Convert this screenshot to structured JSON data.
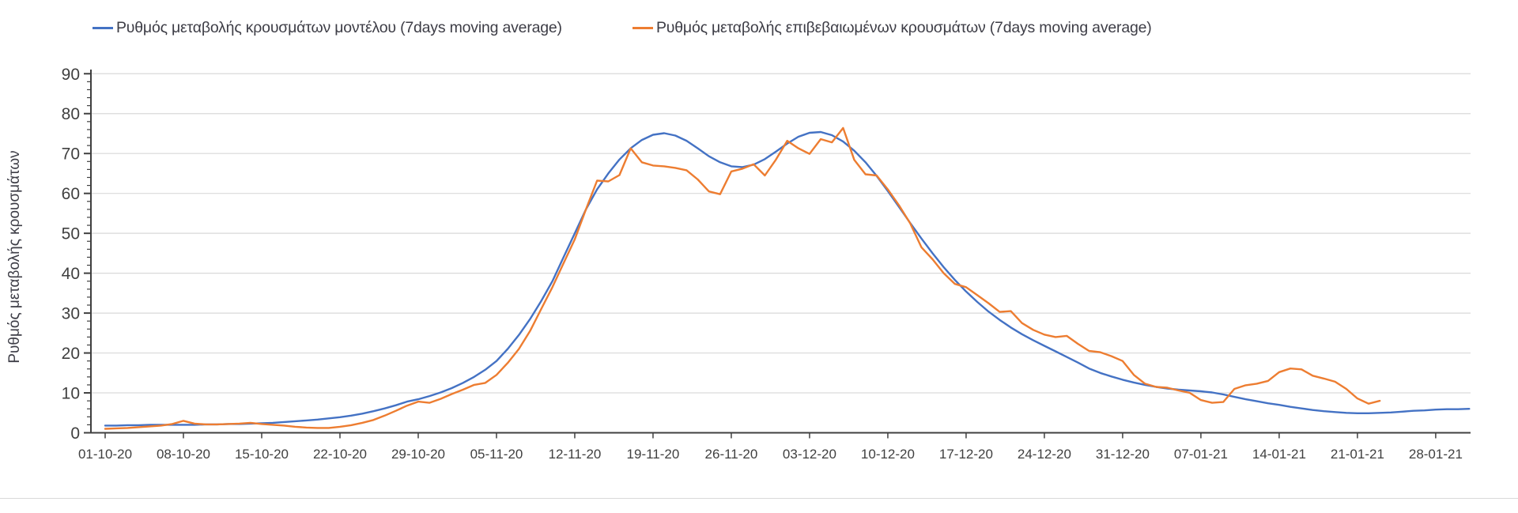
{
  "chart_data": {
    "type": "line",
    "title": "",
    "xlabel": "",
    "ylabel": "Ρυθμός μεταβολής κρουσμάτων",
    "ylim": [
      0,
      90
    ],
    "y_ticks": [
      0,
      10,
      20,
      30,
      40,
      50,
      60,
      70,
      80,
      90
    ],
    "grid": "horizontal",
    "legend_position": "top",
    "x_tick_labels": [
      "01-10-20",
      "08-10-20",
      "15-10-20",
      "22-10-20",
      "29-10-20",
      "05-11-20",
      "12-11-20",
      "19-11-20",
      "26-11-20",
      "03-12-20",
      "10-12-20",
      "17-12-20",
      "24-12-20",
      "31-12-20",
      "07-01-21",
      "14-01-21",
      "21-01-21",
      "28-01-21"
    ],
    "series": [
      {
        "name": "Ρυθμός μεταβολής κρουσμάτων μοντέλου (7days moving average)",
        "color": "#4472C4",
        "start_label": "01-10-20",
        "values": [
          1.8,
          1.8,
          1.9,
          1.9,
          2.0,
          2.0,
          2.0,
          2.0,
          2.0,
          2.1,
          2.1,
          2.2,
          2.2,
          2.3,
          2.4,
          2.5,
          2.7,
          2.9,
          3.1,
          3.3,
          3.6,
          3.9,
          4.3,
          4.8,
          5.4,
          6.1,
          6.9,
          7.8,
          8.4,
          9.2,
          10.1,
          11.2,
          12.5,
          14.0,
          15.8,
          18.0,
          21.0,
          24.5,
          28.5,
          33.0,
          38.0,
          44.0,
          50.0,
          56.0,
          61.0,
          65.0,
          68.5,
          71.3,
          73.4,
          74.7,
          75.1,
          74.5,
          73.2,
          71.3,
          69.3,
          67.8,
          66.8,
          66.6,
          67.2,
          68.6,
          70.5,
          72.5,
          74.2,
          75.2,
          75.4,
          74.6,
          73.0,
          70.7,
          67.8,
          64.4,
          60.6,
          56.6,
          52.6,
          48.7,
          45.0,
          41.5,
          38.3,
          35.4,
          32.8,
          30.4,
          28.3,
          26.4,
          24.7,
          23.2,
          21.8,
          20.4,
          19.0,
          17.6,
          16.1,
          15.0,
          14.1,
          13.3,
          12.6,
          12.0,
          11.5,
          11.1,
          10.8,
          10.6,
          10.4,
          10.1,
          9.6,
          9.0,
          8.4,
          7.9,
          7.4,
          7.0,
          6.5,
          6.1,
          5.7,
          5.4,
          5.2,
          5.0,
          4.9,
          4.9,
          5.0,
          5.1,
          5.3,
          5.5,
          5.6,
          5.8,
          5.9,
          5.9,
          6.0
        ]
      },
      {
        "name": "Ρυθμός μεταβολής επιβεβαιωμένων κρουσμάτων (7days moving average)",
        "color": "#ED7D31",
        "start_label": "01-10-20",
        "values": [
          1.0,
          1.1,
          1.2,
          1.4,
          1.6,
          1.8,
          2.2,
          3.0,
          2.3,
          2.1,
          2.1,
          2.2,
          2.3,
          2.5,
          2.2,
          2.0,
          1.8,
          1.5,
          1.3,
          1.2,
          1.2,
          1.5,
          1.9,
          2.5,
          3.2,
          4.3,
          5.5,
          6.8,
          7.8,
          7.5,
          8.5,
          9.7,
          10.8,
          12.0,
          12.5,
          14.5,
          17.5,
          21.0,
          25.5,
          31.0,
          36.5,
          42.5,
          48.5,
          56.0,
          63.2,
          63.0,
          64.6,
          71.3,
          67.8,
          67.0,
          66.8,
          66.4,
          65.8,
          63.5,
          60.5,
          59.8,
          65.5,
          66.2,
          67.3,
          64.5,
          68.5,
          73.2,
          71.3,
          69.9,
          73.6,
          72.8,
          76.4,
          68.4,
          64.8,
          64.5,
          61.0,
          57.0,
          52.5,
          46.5,
          43.5,
          40.0,
          37.3,
          36.5,
          34.5,
          32.5,
          30.3,
          30.5,
          27.5,
          25.8,
          24.6,
          24.0,
          24.3,
          22.3,
          20.5,
          20.2,
          19.2,
          18.0,
          14.5,
          12.3,
          11.5,
          11.3,
          10.6,
          10.0,
          8.2,
          7.5,
          7.7,
          11.0,
          11.9,
          12.3,
          13.0,
          15.2,
          16.1,
          15.9,
          14.3,
          13.6,
          12.8,
          11.0,
          8.6,
          7.3,
          8.0
        ]
      }
    ]
  }
}
